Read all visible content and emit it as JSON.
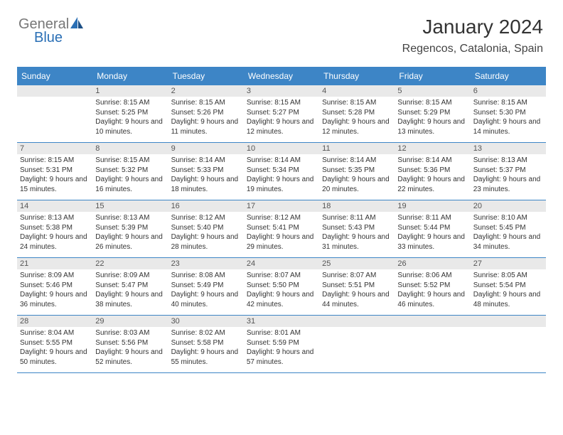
{
  "logo": {
    "general": "General",
    "blue": "Blue"
  },
  "header": {
    "title": "January 2024",
    "location": "Regencos, Catalonia, Spain"
  },
  "colors": {
    "header_bg": "#3d85c6",
    "header_fg": "#ffffff",
    "daynum_bg": "#e9e9e9",
    "rule": "#3d85c6",
    "text": "#333333"
  },
  "day_names": [
    "Sunday",
    "Monday",
    "Tuesday",
    "Wednesday",
    "Thursday",
    "Friday",
    "Saturday"
  ],
  "first_weekday_offset": 1,
  "days": [
    {
      "n": 1,
      "sunrise": "8:15 AM",
      "sunset": "5:25 PM",
      "daylight": "9 hours and 10 minutes."
    },
    {
      "n": 2,
      "sunrise": "8:15 AM",
      "sunset": "5:26 PM",
      "daylight": "9 hours and 11 minutes."
    },
    {
      "n": 3,
      "sunrise": "8:15 AM",
      "sunset": "5:27 PM",
      "daylight": "9 hours and 12 minutes."
    },
    {
      "n": 4,
      "sunrise": "8:15 AM",
      "sunset": "5:28 PM",
      "daylight": "9 hours and 12 minutes."
    },
    {
      "n": 5,
      "sunrise": "8:15 AM",
      "sunset": "5:29 PM",
      "daylight": "9 hours and 13 minutes."
    },
    {
      "n": 6,
      "sunrise": "8:15 AM",
      "sunset": "5:30 PM",
      "daylight": "9 hours and 14 minutes."
    },
    {
      "n": 7,
      "sunrise": "8:15 AM",
      "sunset": "5:31 PM",
      "daylight": "9 hours and 15 minutes."
    },
    {
      "n": 8,
      "sunrise": "8:15 AM",
      "sunset": "5:32 PM",
      "daylight": "9 hours and 16 minutes."
    },
    {
      "n": 9,
      "sunrise": "8:14 AM",
      "sunset": "5:33 PM",
      "daylight": "9 hours and 18 minutes."
    },
    {
      "n": 10,
      "sunrise": "8:14 AM",
      "sunset": "5:34 PM",
      "daylight": "9 hours and 19 minutes."
    },
    {
      "n": 11,
      "sunrise": "8:14 AM",
      "sunset": "5:35 PM",
      "daylight": "9 hours and 20 minutes."
    },
    {
      "n": 12,
      "sunrise": "8:14 AM",
      "sunset": "5:36 PM",
      "daylight": "9 hours and 22 minutes."
    },
    {
      "n": 13,
      "sunrise": "8:13 AM",
      "sunset": "5:37 PM",
      "daylight": "9 hours and 23 minutes."
    },
    {
      "n": 14,
      "sunrise": "8:13 AM",
      "sunset": "5:38 PM",
      "daylight": "9 hours and 24 minutes."
    },
    {
      "n": 15,
      "sunrise": "8:13 AM",
      "sunset": "5:39 PM",
      "daylight": "9 hours and 26 minutes."
    },
    {
      "n": 16,
      "sunrise": "8:12 AM",
      "sunset": "5:40 PM",
      "daylight": "9 hours and 28 minutes."
    },
    {
      "n": 17,
      "sunrise": "8:12 AM",
      "sunset": "5:41 PM",
      "daylight": "9 hours and 29 minutes."
    },
    {
      "n": 18,
      "sunrise": "8:11 AM",
      "sunset": "5:43 PM",
      "daylight": "9 hours and 31 minutes."
    },
    {
      "n": 19,
      "sunrise": "8:11 AM",
      "sunset": "5:44 PM",
      "daylight": "9 hours and 33 minutes."
    },
    {
      "n": 20,
      "sunrise": "8:10 AM",
      "sunset": "5:45 PM",
      "daylight": "9 hours and 34 minutes."
    },
    {
      "n": 21,
      "sunrise": "8:09 AM",
      "sunset": "5:46 PM",
      "daylight": "9 hours and 36 minutes."
    },
    {
      "n": 22,
      "sunrise": "8:09 AM",
      "sunset": "5:47 PM",
      "daylight": "9 hours and 38 minutes."
    },
    {
      "n": 23,
      "sunrise": "8:08 AM",
      "sunset": "5:49 PM",
      "daylight": "9 hours and 40 minutes."
    },
    {
      "n": 24,
      "sunrise": "8:07 AM",
      "sunset": "5:50 PM",
      "daylight": "9 hours and 42 minutes."
    },
    {
      "n": 25,
      "sunrise": "8:07 AM",
      "sunset": "5:51 PM",
      "daylight": "9 hours and 44 minutes."
    },
    {
      "n": 26,
      "sunrise": "8:06 AM",
      "sunset": "5:52 PM",
      "daylight": "9 hours and 46 minutes."
    },
    {
      "n": 27,
      "sunrise": "8:05 AM",
      "sunset": "5:54 PM",
      "daylight": "9 hours and 48 minutes."
    },
    {
      "n": 28,
      "sunrise": "8:04 AM",
      "sunset": "5:55 PM",
      "daylight": "9 hours and 50 minutes."
    },
    {
      "n": 29,
      "sunrise": "8:03 AM",
      "sunset": "5:56 PM",
      "daylight": "9 hours and 52 minutes."
    },
    {
      "n": 30,
      "sunrise": "8:02 AM",
      "sunset": "5:58 PM",
      "daylight": "9 hours and 55 minutes."
    },
    {
      "n": 31,
      "sunrise": "8:01 AM",
      "sunset": "5:59 PM",
      "daylight": "9 hours and 57 minutes."
    }
  ],
  "labels": {
    "sunrise": "Sunrise:",
    "sunset": "Sunset:",
    "daylight": "Daylight:"
  }
}
